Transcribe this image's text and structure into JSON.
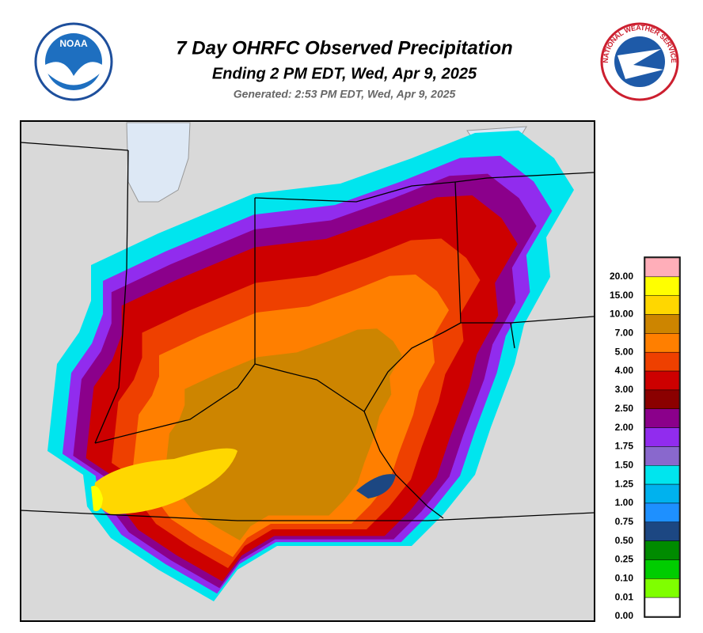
{
  "header": {
    "title": "7 Day OHRFC Observed Precipitation",
    "subtitle": "Ending 2 PM EDT, Wed, Apr 9, 2025",
    "generated": "Generated: 2:53 PM EDT, Wed, Apr 9, 2025",
    "noaa_logo": "NOAA",
    "nws_logo": "NATIONAL WEATHER SERVICE"
  },
  "legend": {
    "items": [
      {
        "label": "20.00",
        "color": "#ffaeb9"
      },
      {
        "label": "15.00",
        "color": "#ffff00"
      },
      {
        "label": "10.00",
        "color": "#ffd700"
      },
      {
        "label": "7.00",
        "color": "#cd8500"
      },
      {
        "label": "5.00",
        "color": "#ff7f00"
      },
      {
        "label": "4.00",
        "color": "#ee4000"
      },
      {
        "label": "3.00",
        "color": "#cd0000"
      },
      {
        "label": "2.50",
        "color": "#8b0000"
      },
      {
        "label": "2.00",
        "color": "#8b008b"
      },
      {
        "label": "1.75",
        "color": "#912cee"
      },
      {
        "label": "1.50",
        "color": "#8968cd"
      },
      {
        "label": "1.25",
        "color": "#00e5ee"
      },
      {
        "label": "1.00",
        "color": "#00b2ee"
      },
      {
        "label": "0.75",
        "color": "#1e90ff"
      },
      {
        "label": "0.50",
        "color": "#1c4782"
      },
      {
        "label": "0.25",
        "color": "#008b00"
      },
      {
        "label": "0.10",
        "color": "#00cd00"
      },
      {
        "label": "0.01",
        "color": "#7fff00"
      },
      {
        "label": "0.00",
        "color": "#ffffff"
      }
    ]
  }
}
